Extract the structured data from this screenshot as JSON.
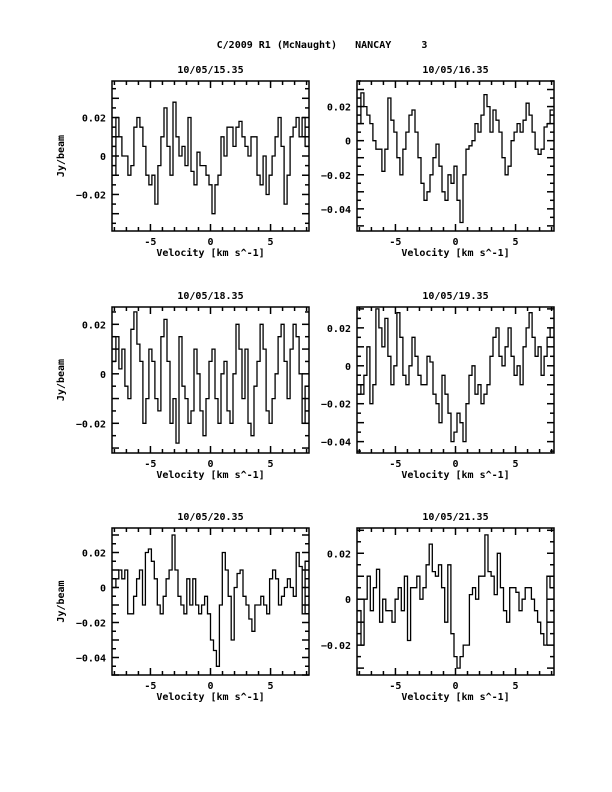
{
  "chart_data": {
    "type": "line",
    "title": "C/2009 R1 (McNaught)   NANCAY     3",
    "xlabel": "Velocity [km s^-1]",
    "ylabel": "Jy/beam",
    "xlim": [
      -8.2,
      8.2
    ],
    "xticks": [
      -5,
      0,
      5
    ],
    "panels": [
      {
        "title": "10/05/15.35",
        "ylim": [
          -0.039,
          0.039
        ],
        "yticks": [
          -0.02,
          0,
          0.02
        ],
        "show_ylabel": true,
        "values": [
          -0.01,
          0.02,
          0.01,
          0,
          0,
          -0.01,
          -0.005,
          0.015,
          0.02,
          0.015,
          0.005,
          -0.01,
          -0.015,
          -0.01,
          -0.025,
          -0.005,
          0.01,
          0.025,
          0.005,
          -0.01,
          0.028,
          0.01,
          0,
          0.005,
          -0.005,
          0.02,
          -0.008,
          -0.015,
          0.002,
          -0.005,
          -0.005,
          -0.01,
          -0.015,
          -0.03,
          -0.015,
          -0.01,
          0.01,
          0,
          0.015,
          0.015,
          0.005,
          0.015,
          0.018,
          0.01,
          0.005,
          0,
          0.01,
          0.01,
          -0.01,
          -0.015,
          0,
          -0.02,
          -0.01,
          0,
          0.01,
          0.02,
          0.005,
          -0.025,
          -0.01,
          0.01,
          0.015,
          0.02,
          0.01,
          0.02,
          0.005
        ]
      },
      {
        "title": "10/05/16.35",
        "ylim": [
          -0.053,
          0.035
        ],
        "yticks": [
          -0.04,
          -0.02,
          0,
          0.02
        ],
        "show_ylabel": false,
        "values": [
          0.01,
          0.028,
          0.02,
          0.015,
          0.01,
          0,
          -0.005,
          -0.005,
          -0.018,
          -0.005,
          0.025,
          0.012,
          0.005,
          -0.01,
          -0.02,
          -0.005,
          0.005,
          0.015,
          0.018,
          0.005,
          -0.01,
          -0.025,
          -0.035,
          -0.03,
          -0.02,
          -0.01,
          -0.002,
          -0.015,
          -0.03,
          -0.035,
          -0.02,
          -0.025,
          -0.015,
          -0.035,
          -0.048,
          -0.02,
          -0.005,
          -0.003,
          0,
          0.01,
          0.005,
          0.015,
          0.027,
          0.02,
          0.005,
          0.018,
          0.012,
          0.005,
          -0.01,
          -0.02,
          -0.015,
          0,
          0.005,
          0.01,
          0.005,
          0.012,
          0.022,
          0.015,
          0.005,
          -0.005,
          -0.008,
          -0.005,
          0.008,
          0.01,
          0.018
        ]
      },
      {
        "title": "10/05/18.35",
        "ylim": [
          -0.032,
          0.027
        ],
        "yticks": [
          -0.02,
          0,
          0.02
        ],
        "show_ylabel": true,
        "values": [
          0.005,
          0.015,
          0.002,
          0.01,
          -0.005,
          -0.01,
          0.018,
          0.025,
          0.012,
          0.005,
          -0.02,
          -0.01,
          0.01,
          0.005,
          -0.01,
          -0.015,
          0.015,
          0.022,
          0.005,
          -0.02,
          -0.01,
          -0.028,
          0.015,
          -0.005,
          -0.01,
          -0.02,
          -0.015,
          0.01,
          0,
          -0.015,
          -0.025,
          -0.01,
          0.005,
          0.01,
          -0.01,
          -0.02,
          0,
          0.005,
          -0.015,
          -0.02,
          0,
          0.02,
          0.01,
          -0.01,
          0.01,
          -0.02,
          -0.025,
          -0.005,
          0.005,
          0.02,
          0.01,
          -0.015,
          -0.02,
          -0.01,
          0,
          0.015,
          0.02,
          0.005,
          -0.01,
          0.01,
          0.02,
          0.015,
          0,
          -0.02,
          -0.005
        ]
      },
      {
        "title": "10/05/19.35",
        "ylim": [
          -0.046,
          0.031
        ],
        "yticks": [
          -0.04,
          -0.02,
          0,
          0.02
        ],
        "show_ylabel": false,
        "values": [
          -0.01,
          -0.015,
          -0.005,
          0.01,
          -0.02,
          -0.01,
          0.03,
          0.02,
          0.01,
          0.025,
          0.005,
          -0.01,
          0,
          0.028,
          0.015,
          -0.005,
          -0.01,
          0,
          0.015,
          0.005,
          -0.005,
          -0.01,
          -0.01,
          0.005,
          0.002,
          -0.015,
          -0.02,
          -0.03,
          -0.005,
          -0.015,
          -0.025,
          -0.04,
          -0.035,
          -0.025,
          -0.03,
          -0.04,
          -0.02,
          -0.005,
          0,
          -0.015,
          -0.01,
          -0.02,
          -0.015,
          -0.01,
          0.005,
          0.015,
          0.02,
          0.005,
          0,
          0.01,
          0.02,
          0.005,
          -0.005,
          0,
          -0.01,
          0.01,
          0.02,
          0.028,
          0.015,
          0.005,
          0.01,
          -0.005,
          0.005,
          0.015,
          0.02
        ]
      },
      {
        "title": "10/05/20.35",
        "ylim": [
          -0.05,
          0.034
        ],
        "yticks": [
          -0.04,
          -0.02,
          0,
          0.02
        ],
        "show_ylabel": true,
        "values": [
          0,
          0.005,
          0.01,
          0.005,
          0.01,
          -0.015,
          -0.015,
          -0.005,
          0.005,
          0.01,
          -0.01,
          0.02,
          0.022,
          0.015,
          0.005,
          -0.01,
          -0.015,
          -0.005,
          0.005,
          0.01,
          0.03,
          0.01,
          -0.005,
          -0.01,
          -0.015,
          0.005,
          -0.01,
          0.005,
          -0.01,
          -0.015,
          -0.01,
          -0.005,
          -0.015,
          -0.03,
          -0.036,
          -0.045,
          -0.01,
          0.02,
          0.01,
          -0.005,
          -0.03,
          0,
          0.008,
          0.01,
          -0.005,
          -0.01,
          -0.018,
          -0.025,
          -0.01,
          -0.01,
          -0.005,
          -0.01,
          -0.015,
          0.005,
          0.01,
          0.005,
          -0.01,
          -0.005,
          0,
          0.005,
          0,
          -0.005,
          0.02,
          0.012,
          -0.015,
          0.015
        ]
      },
      {
        "title": "10/05/21.35",
        "ylim": [
          -0.033,
          0.031
        ],
        "yticks": [
          -0.02,
          0,
          0.02
        ],
        "show_ylabel": false,
        "values": [
          -0.005,
          -0.02,
          0,
          0.01,
          -0.005,
          0.005,
          0.013,
          -0.01,
          0,
          -0.005,
          -0.005,
          -0.01,
          0,
          0.005,
          -0.005,
          0.01,
          -0.018,
          0.005,
          0.005,
          0.01,
          0,
          0.005,
          0.015,
          0.024,
          0.012,
          0.01,
          0.015,
          0.005,
          -0.01,
          0.015,
          -0.015,
          -0.025,
          -0.03,
          -0.025,
          -0.02,
          -0.02,
          0.002,
          0.005,
          0,
          0.01,
          0.01,
          0.028,
          0.012,
          0.01,
          0.002,
          0.02,
          0.005,
          -0.005,
          -0.01,
          0.005,
          0.005,
          0.003,
          -0.005,
          0,
          0.005,
          0.005,
          0,
          -0.005,
          -0.01,
          -0.015,
          -0.02,
          0.01,
          0.005
        ]
      }
    ]
  }
}
